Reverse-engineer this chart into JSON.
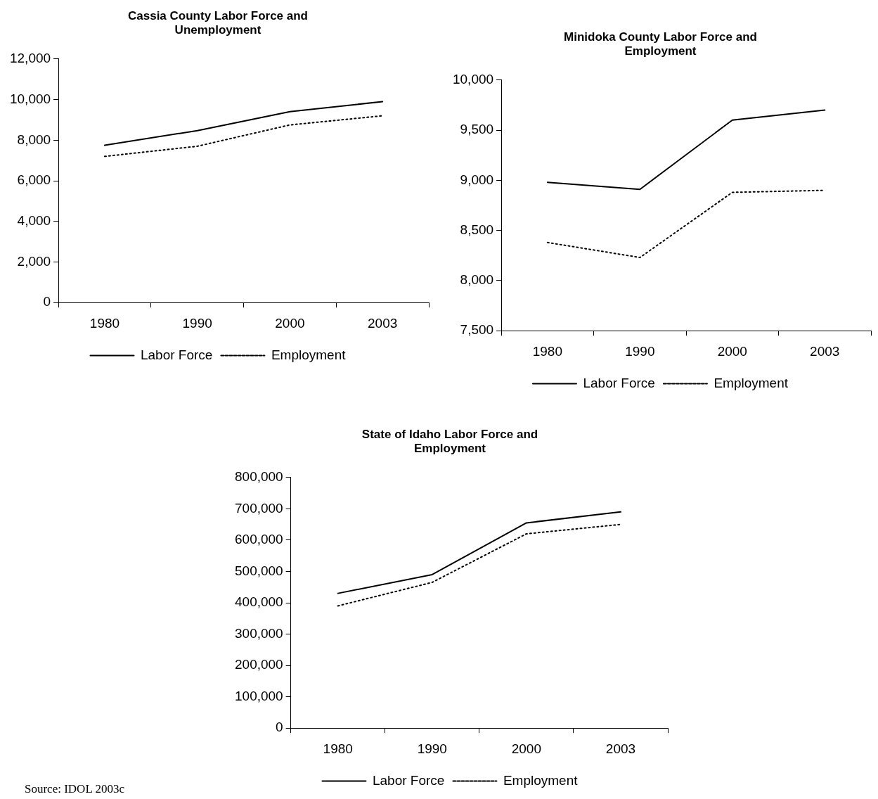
{
  "chart_data": [
    {
      "type": "line",
      "title": "Cassia County Labor Force and Unemployment",
      "categories": [
        "1980",
        "1990",
        "2000",
        "2003"
      ],
      "series": [
        {
          "name": "Labor Force",
          "color": "#000000",
          "values": [
            7750,
            8470,
            9400,
            9900
          ],
          "line_style": "solid"
        },
        {
          "name": "Employment",
          "color": "#000000",
          "values": [
            7200,
            7700,
            8750,
            9200
          ],
          "line_style": "dotted"
        }
      ],
      "ylim": [
        0,
        12000
      ],
      "yticks": [
        0,
        {
          "value": 2000,
          "label": "2,000"
        },
        {
          "value": 4000,
          "label": "4,000"
        },
        {
          "value": 6000,
          "label": "6,000"
        },
        {
          "value": 8000,
          "label": "8,000"
        },
        {
          "value": 10000,
          "label": "10,000"
        },
        {
          "value": 12000,
          "label": "12,000"
        }
      ],
      "grid": false,
      "legend": "bottom",
      "marker": "none"
    },
    {
      "type": "line",
      "title": "Minidoka County Labor Force and Employment",
      "categories": [
        "1980",
        "1990",
        "2000",
        "2003"
      ],
      "series": [
        {
          "name": "Labor Force",
          "color": "#000000",
          "values": [
            8980,
            8910,
            9600,
            9700
          ],
          "line_style": "solid"
        },
        {
          "name": "Employment",
          "color": "#000000",
          "values": [
            8380,
            8230,
            8880,
            8900
          ],
          "line_style": "dotted"
        }
      ],
      "ylim": [
        7500,
        10000
      ],
      "yticks": [
        {
          "value": 7500,
          "label": "7,500"
        },
        {
          "value": 8000,
          "label": "8,000"
        },
        {
          "value": 8500,
          "label": "8,500"
        },
        {
          "value": 9000,
          "label": "9,000"
        },
        {
          "value": 9500,
          "label": "9,500"
        },
        {
          "value": 10000,
          "label": "10,000"
        }
      ],
      "grid": false,
      "legend": "bottom",
      "marker": "none"
    },
    {
      "type": "line",
      "title": "State of Idaho Labor Force and Employment",
      "categories": [
        "1980",
        "1990",
        "2000",
        "2003"
      ],
      "series": [
        {
          "name": "Labor Force",
          "color": "#000000",
          "values": [
            430000,
            490000,
            655000,
            690000
          ],
          "line_style": "solid"
        },
        {
          "name": "Employment",
          "color": "#000000",
          "values": [
            390000,
            465000,
            620000,
            650000
          ],
          "line_style": "dotted"
        }
      ],
      "ylim": [
        0,
        800000
      ],
      "yticks": [
        0,
        {
          "value": 100000,
          "label": "100,000"
        },
        {
          "value": 200000,
          "label": "200,000"
        },
        {
          "value": 300000,
          "label": "300,000"
        },
        {
          "value": 400000,
          "label": "400,000"
        },
        {
          "value": 500000,
          "label": "500,000"
        },
        {
          "value": 600000,
          "label": "600,000"
        },
        {
          "value": 700000,
          "label": "700,000"
        },
        {
          "value": 800000,
          "label": "800,000"
        }
      ],
      "grid": false,
      "legend": "bottom",
      "marker": "none",
      "annotations": [
        "Source:  IDOL 2003c"
      ]
    }
  ]
}
